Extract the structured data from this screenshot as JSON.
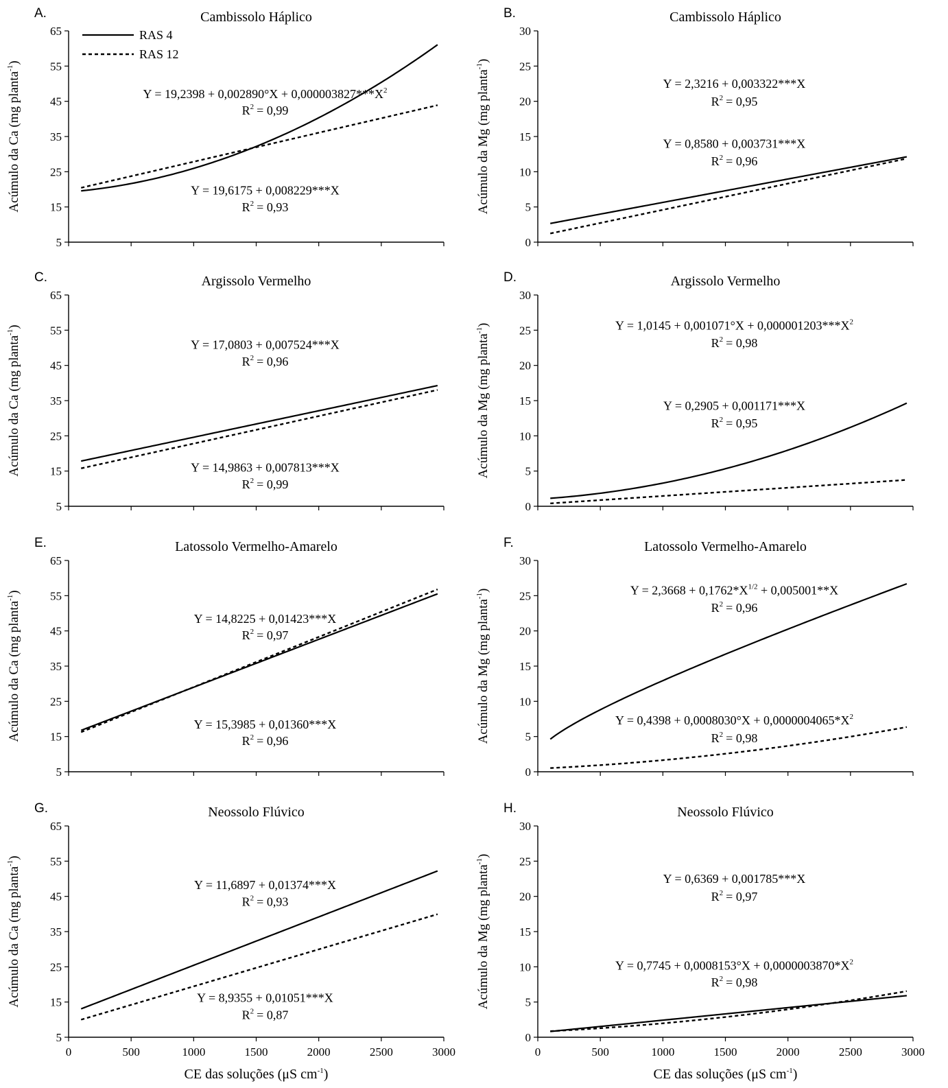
{
  "chart_data": [
    {
      "id": "A",
      "letter": "A.",
      "title": "Cambissolo Háplico",
      "type": "line",
      "ylabel_main": "Acúmulo da Ca (mg planta",
      "ylabel_sup": "-1",
      "ylabel_end": ")",
      "ylim": [
        5,
        65
      ],
      "yticks": [
        5,
        15,
        25,
        35,
        45,
        55,
        65
      ],
      "xlim": [
        0,
        3000
      ],
      "xticks": [
        0,
        500,
        1000,
        1500,
        2000,
        2500,
        3000
      ],
      "show_xtick_labels": false,
      "xlabel_main": "",
      "xlabel_sup": "",
      "xlabel_end": "",
      "legend": [
        {
          "label": "RAS 4",
          "style": "solid"
        },
        {
          "label": "RAS 12",
          "style": "dashed"
        }
      ],
      "series": [
        {
          "name": "RAS 4",
          "style": "solid",
          "kind": "poly",
          "coef": [
            19.2398,
            0.00289,
            3.827e-06
          ]
        },
        {
          "name": "RAS 12",
          "style": "dashed",
          "kind": "poly",
          "coef": [
            19.6175,
            0.008229,
            0
          ]
        }
      ],
      "equations": [
        {
          "main": "Y = 19,2398 + 0,002890°X + 0,000003827***X",
          "sup": "2",
          "r2": "= 0,99",
          "y": 45.9,
          "r2y": 41.2
        },
        {
          "main": "Y = 19,6175 + 0,008229***X",
          "sup": "",
          "r2": "= 0,93",
          "y": 18.5,
          "r2y": 13.8
        }
      ]
    },
    {
      "id": "B",
      "letter": "B.",
      "title": "Cambissolo Háplico",
      "type": "line",
      "ylabel_main": "Acúmulo da Mg (mg planta",
      "ylabel_sup": "-1",
      "ylabel_end": ")",
      "ylim": [
        0,
        30
      ],
      "yticks": [
        0,
        5,
        10,
        15,
        20,
        25,
        30
      ],
      "xlim": [
        0,
        3000
      ],
      "xticks": [
        0,
        500,
        1000,
        1500,
        2000,
        2500,
        3000
      ],
      "show_xtick_labels": false,
      "xlabel_main": "",
      "xlabel_sup": "",
      "xlabel_end": "",
      "legend": [],
      "series": [
        {
          "name": "RAS 4",
          "style": "solid",
          "kind": "poly",
          "coef": [
            2.3216,
            0.003322,
            0
          ]
        },
        {
          "name": "RAS 12",
          "style": "dashed",
          "kind": "poly",
          "coef": [
            0.858,
            0.003731,
            0
          ]
        }
      ],
      "equations": [
        {
          "main": "Y = 2,3216 + 0,003322***X",
          "sup": "",
          "r2": "= 0,95",
          "y": 21.9,
          "r2y": 19.4
        },
        {
          "main": "Y = 0,8580 + 0,003731***X",
          "sup": "",
          "r2": "= 0,96",
          "y": 13.4,
          "r2y": 10.9
        }
      ]
    },
    {
      "id": "C",
      "letter": "C.",
      "title": "Argissolo Vermelho",
      "type": "line",
      "ylabel_main": "Acúmulo da Ca (mg planta",
      "ylabel_sup": "-1",
      "ylabel_end": ")",
      "ylim": [
        5,
        65
      ],
      "yticks": [
        5,
        15,
        25,
        35,
        45,
        55,
        65
      ],
      "xlim": [
        0,
        3000
      ],
      "xticks": [
        0,
        500,
        1000,
        1500,
        2000,
        2500,
        3000
      ],
      "show_xtick_labels": false,
      "xlabel_main": "",
      "xlabel_sup": "",
      "xlabel_end": "",
      "legend": [],
      "series": [
        {
          "name": "RAS 4",
          "style": "solid",
          "kind": "poly",
          "coef": [
            17.0803,
            0.007524,
            0
          ]
        },
        {
          "name": "RAS 12",
          "style": "dashed",
          "kind": "poly",
          "coef": [
            14.9863,
            0.007813,
            0
          ]
        }
      ],
      "equations": [
        {
          "main": "Y = 17,0803 + 0,007524***X",
          "sup": "",
          "r2": "= 0,96",
          "y": 49.7,
          "r2y": 44.9
        },
        {
          "main": "Y = 14,9863 + 0,007813***X",
          "sup": "",
          "r2": "= 0,99",
          "y": 14.8,
          "r2y": 10.1
        }
      ]
    },
    {
      "id": "D",
      "letter": "D.",
      "title": "Argissolo Vermelho",
      "type": "line",
      "ylabel_main": "Acúmulo da Mg (mg planta",
      "ylabel_sup": "-1",
      "ylabel_end": ")",
      "ylim": [
        0,
        30
      ],
      "yticks": [
        0,
        5,
        10,
        15,
        20,
        25,
        30
      ],
      "xlim": [
        0,
        3000
      ],
      "xticks": [
        0,
        500,
        1000,
        1500,
        2000,
        2500,
        3000
      ],
      "show_xtick_labels": false,
      "xlabel_main": "",
      "xlabel_sup": "",
      "xlabel_end": "",
      "legend": [],
      "series": [
        {
          "name": "RAS 4",
          "style": "solid",
          "kind": "poly",
          "coef": [
            1.0145,
            0.001071,
            1.203e-06
          ]
        },
        {
          "name": "RAS 12",
          "style": "dashed",
          "kind": "poly",
          "coef": [
            0.2905,
            0.001171,
            0
          ]
        }
      ],
      "equations": [
        {
          "main": "Y = 1,0145 + 0,001071°X + 0,000001203***X",
          "sup": "2",
          "r2": "= 0,98",
          "y": 25.1,
          "r2y": 22.6
        },
        {
          "main": "Y = 0,2905 + 0,001171***X",
          "sup": "",
          "r2": "= 0,95",
          "y": 13.7,
          "r2y": 11.2
        }
      ]
    },
    {
      "id": "E",
      "letter": "E.",
      "title": "Latossolo Vermelho-Amarelo",
      "type": "line",
      "ylabel_main": "Acúmulo da Ca (mg planta",
      "ylabel_sup": "-1",
      "ylabel_end": ")",
      "ylim": [
        5,
        65
      ],
      "yticks": [
        5,
        15,
        25,
        35,
        45,
        55,
        65
      ],
      "xlim": [
        0,
        3000
      ],
      "xticks": [
        0,
        500,
        1000,
        1500,
        2000,
        2500,
        3000
      ],
      "show_xtick_labels": false,
      "xlabel_main": "",
      "xlabel_sup": "",
      "xlabel_end": "",
      "legend": [],
      "series": [
        {
          "name": "RAS 4",
          "style": "solid",
          "kind": "poly",
          "coef": [
            15.3985,
            0.0136,
            0
          ]
        },
        {
          "name": "RAS 12",
          "style": "dashed",
          "kind": "poly",
          "coef": [
            14.8225,
            0.01423,
            0
          ]
        }
      ],
      "equations": [
        {
          "main": "Y = 14,8225 + 0,01423***X",
          "sup": "",
          "r2": "= 0,97",
          "y": 47.3,
          "r2y": 42.6
        },
        {
          "main": "Y = 15,3985 + 0,01360***X",
          "sup": "",
          "r2": "= 0,96",
          "y": 17.3,
          "r2y": 12.6
        }
      ]
    },
    {
      "id": "F",
      "letter": "F.",
      "title": "Latossolo Vermelho-Amarelo",
      "type": "line",
      "ylabel_main": "Acúmulo da Mg (mg planta",
      "ylabel_sup": "-1",
      "ylabel_end": ")",
      "ylim": [
        0,
        30
      ],
      "yticks": [
        0,
        5,
        10,
        15,
        20,
        25,
        30
      ],
      "xlim": [
        0,
        3000
      ],
      "xticks": [
        0,
        500,
        1000,
        1500,
        2000,
        2500,
        3000
      ],
      "show_xtick_labels": false,
      "xlabel_main": "",
      "xlabel_sup": "",
      "xlabel_end": "",
      "legend": [],
      "series": [
        {
          "name": "RAS 4",
          "style": "solid",
          "kind": "sqrt",
          "coef": [
            2.3668,
            0.1762,
            0.005001
          ]
        },
        {
          "name": "RAS 12",
          "style": "dashed",
          "kind": "poly",
          "coef": [
            0.4398,
            0.000803,
            4.065e-07
          ]
        }
      ],
      "equations": [
        {
          "main": "Y = 2,3668 + 0,1762*X",
          "sup": "1/2",
          "main2": " + 0,005001**X",
          "r2": "= 0,96",
          "y": 25.2,
          "r2y": 22.7
        },
        {
          "main": "Y = 0,4398 + 0,0008030°X + 0,0000004065*X",
          "sup": "2",
          "r2": "= 0,98",
          "y": 6.7,
          "r2y": 4.2
        }
      ]
    },
    {
      "id": "G",
      "letter": "G.",
      "title": "Neossolo Flúvico",
      "type": "line",
      "ylabel_main": "Acúmulo da Ca (mg planta",
      "ylabel_sup": "-1",
      "ylabel_end": ")",
      "ylim": [
        5,
        65
      ],
      "yticks": [
        5,
        15,
        25,
        35,
        45,
        55,
        65
      ],
      "xlim": [
        0,
        3000
      ],
      "xticks": [
        0,
        500,
        1000,
        1500,
        2000,
        2500,
        3000
      ],
      "show_xtick_labels": true,
      "xlabel_main": "CE das soluções (μS cm",
      "xlabel_sup": "-1",
      "xlabel_end": ")",
      "legend": [],
      "series": [
        {
          "name": "RAS 4",
          "style": "solid",
          "kind": "poly",
          "coef": [
            11.6897,
            0.01374,
            0
          ]
        },
        {
          "name": "RAS 12",
          "style": "dashed",
          "kind": "poly",
          "coef": [
            8.9355,
            0.01051,
            0
          ]
        }
      ],
      "equations": [
        {
          "main": "Y = 11,6897 + 0,01374***X",
          "sup": "",
          "r2": "= 0,93",
          "y": 47.1,
          "r2y": 42.3
        },
        {
          "main": "Y = 8,9355 + 0,01051***X",
          "sup": "",
          "r2": "= 0,87",
          "y": 15.0,
          "r2y": 10.2
        }
      ]
    },
    {
      "id": "H",
      "letter": "H.",
      "title": "Neossolo Flúvico",
      "type": "line",
      "ylabel_main": "Acúmulo da Mg (mg planta",
      "ylabel_sup": "-1",
      "ylabel_end": ")",
      "ylim": [
        0,
        30
      ],
      "yticks": [
        0,
        5,
        10,
        15,
        20,
        25,
        30
      ],
      "xlim": [
        0,
        3000
      ],
      "xticks": [
        0,
        500,
        1000,
        1500,
        2000,
        2500,
        3000
      ],
      "show_xtick_labels": true,
      "xlabel_main": "CE das soluções (μS cm",
      "xlabel_sup": "-1",
      "xlabel_end": ")",
      "legend": [],
      "series": [
        {
          "name": "RAS 4",
          "style": "solid",
          "kind": "poly",
          "coef": [
            0.6369,
            0.001785,
            0
          ]
        },
        {
          "name": "RAS 12",
          "style": "dashed",
          "kind": "poly",
          "coef": [
            0.7745,
            0.0008153,
            3.87e-07
          ]
        }
      ],
      "equations": [
        {
          "main": "Y = 0,6369 + 0,001785***X",
          "sup": "",
          "r2": "= 0,97",
          "y": 21.9,
          "r2y": 19.4
        },
        {
          "main": "Y = 0,7745 + 0,0008153°X + 0,0000003870*X",
          "sup": "2",
          "r2": "= 0,98",
          "y": 9.6,
          "r2y": 7.2
        }
      ]
    }
  ]
}
